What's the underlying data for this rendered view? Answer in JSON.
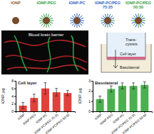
{
  "chart_data": [
    {
      "type": "bar",
      "title": "Cell layer",
      "y_label": "IONP, µg",
      "categories": [
        "IONP",
        "IONP-PEG",
        "IONP-PC",
        "IONP-PC/PEG 75:25",
        "IONP-PC/PEG 50:50"
      ],
      "values": [
        1.5,
        3.5,
        6.0,
        5.0,
        4.8
      ],
      "error": [
        0.8,
        1.0,
        1.5,
        1.0,
        0.7
      ],
      "color": "#e2403a",
      "ylim": [
        0,
        8
      ],
      "yticks": [
        0,
        2,
        4,
        6,
        8
      ]
    },
    {
      "type": "bar",
      "title": "Basolateral",
      "y_label": "IONP, µg",
      "categories": [
        "IONP",
        "IONP-PEG",
        "IONP-PC",
        "IONP-PC/PEG 75:25",
        "IONP-PC/PEG 50:50"
      ],
      "values": [
        1.2,
        2.2,
        2.5,
        2.5,
        2.6
      ],
      "error": [
        0.3,
        0.3,
        0.3,
        0.3,
        0.3
      ],
      "color": "#4caf50",
      "ylim": [
        0,
        3
      ],
      "yticks": [
        0,
        1,
        2,
        3
      ]
    }
  ],
  "figure": {
    "particles": [
      {
        "label": [
          "IONP"
        ],
        "color": "#8b5a2b"
      },
      {
        "label": [
          "IONP-PEG"
        ],
        "color": "#2e9e3e"
      },
      {
        "label": [
          "IONP-PC"
        ],
        "color": "#2f5fbf"
      },
      {
        "label": [
          "IONP-PC/PEG",
          "75:25"
        ],
        "color": "#2f5fbf"
      },
      {
        "label": [
          "IONP-PC/PEG",
          "50:50"
        ],
        "color": "#2e9e3e"
      }
    ],
    "image_label": "Blood brain barrier",
    "diagram": {
      "transcytosis": [
        "Trans-",
        "cytosis"
      ],
      "cell_layer": "Cell layer",
      "basolateral": "Basolateral"
    }
  }
}
